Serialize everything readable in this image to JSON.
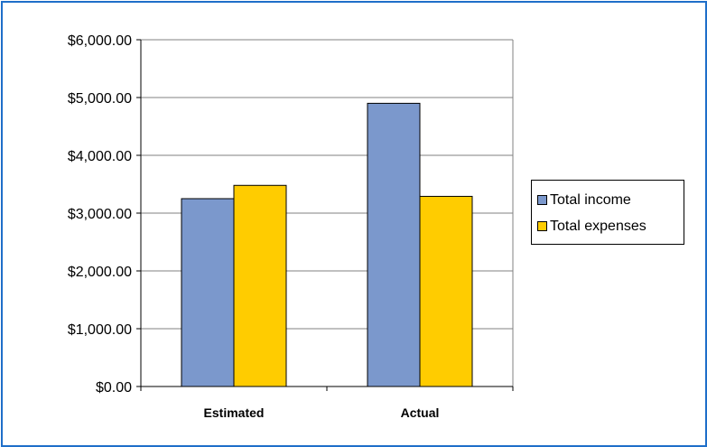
{
  "colors": {
    "frame_border": "#1f6fc9",
    "income": "#7b98cc",
    "expenses": "#ffcc00",
    "grid": "#808080"
  },
  "chart_data": {
    "type": "bar",
    "title": "",
    "xlabel": "",
    "ylabel": "",
    "categories": [
      "Estimated",
      "Actual"
    ],
    "series": [
      {
        "name": "Total income",
        "values": [
          3250,
          4900
        ],
        "color": "#7b98cc"
      },
      {
        "name": "Total expenses",
        "values": [
          3480,
          3290
        ],
        "color": "#ffcc00"
      }
    ],
    "ylim": [
      0,
      6000
    ],
    "yticks": [
      0,
      1000,
      2000,
      3000,
      4000,
      5000,
      6000
    ],
    "ytick_labels": [
      "$0.00",
      "$1,000.00",
      "$2,000.00",
      "$3,000.00",
      "$4,000.00",
      "$5,000.00",
      "$6,000.00"
    ],
    "grid": true,
    "legend_position": "right"
  }
}
